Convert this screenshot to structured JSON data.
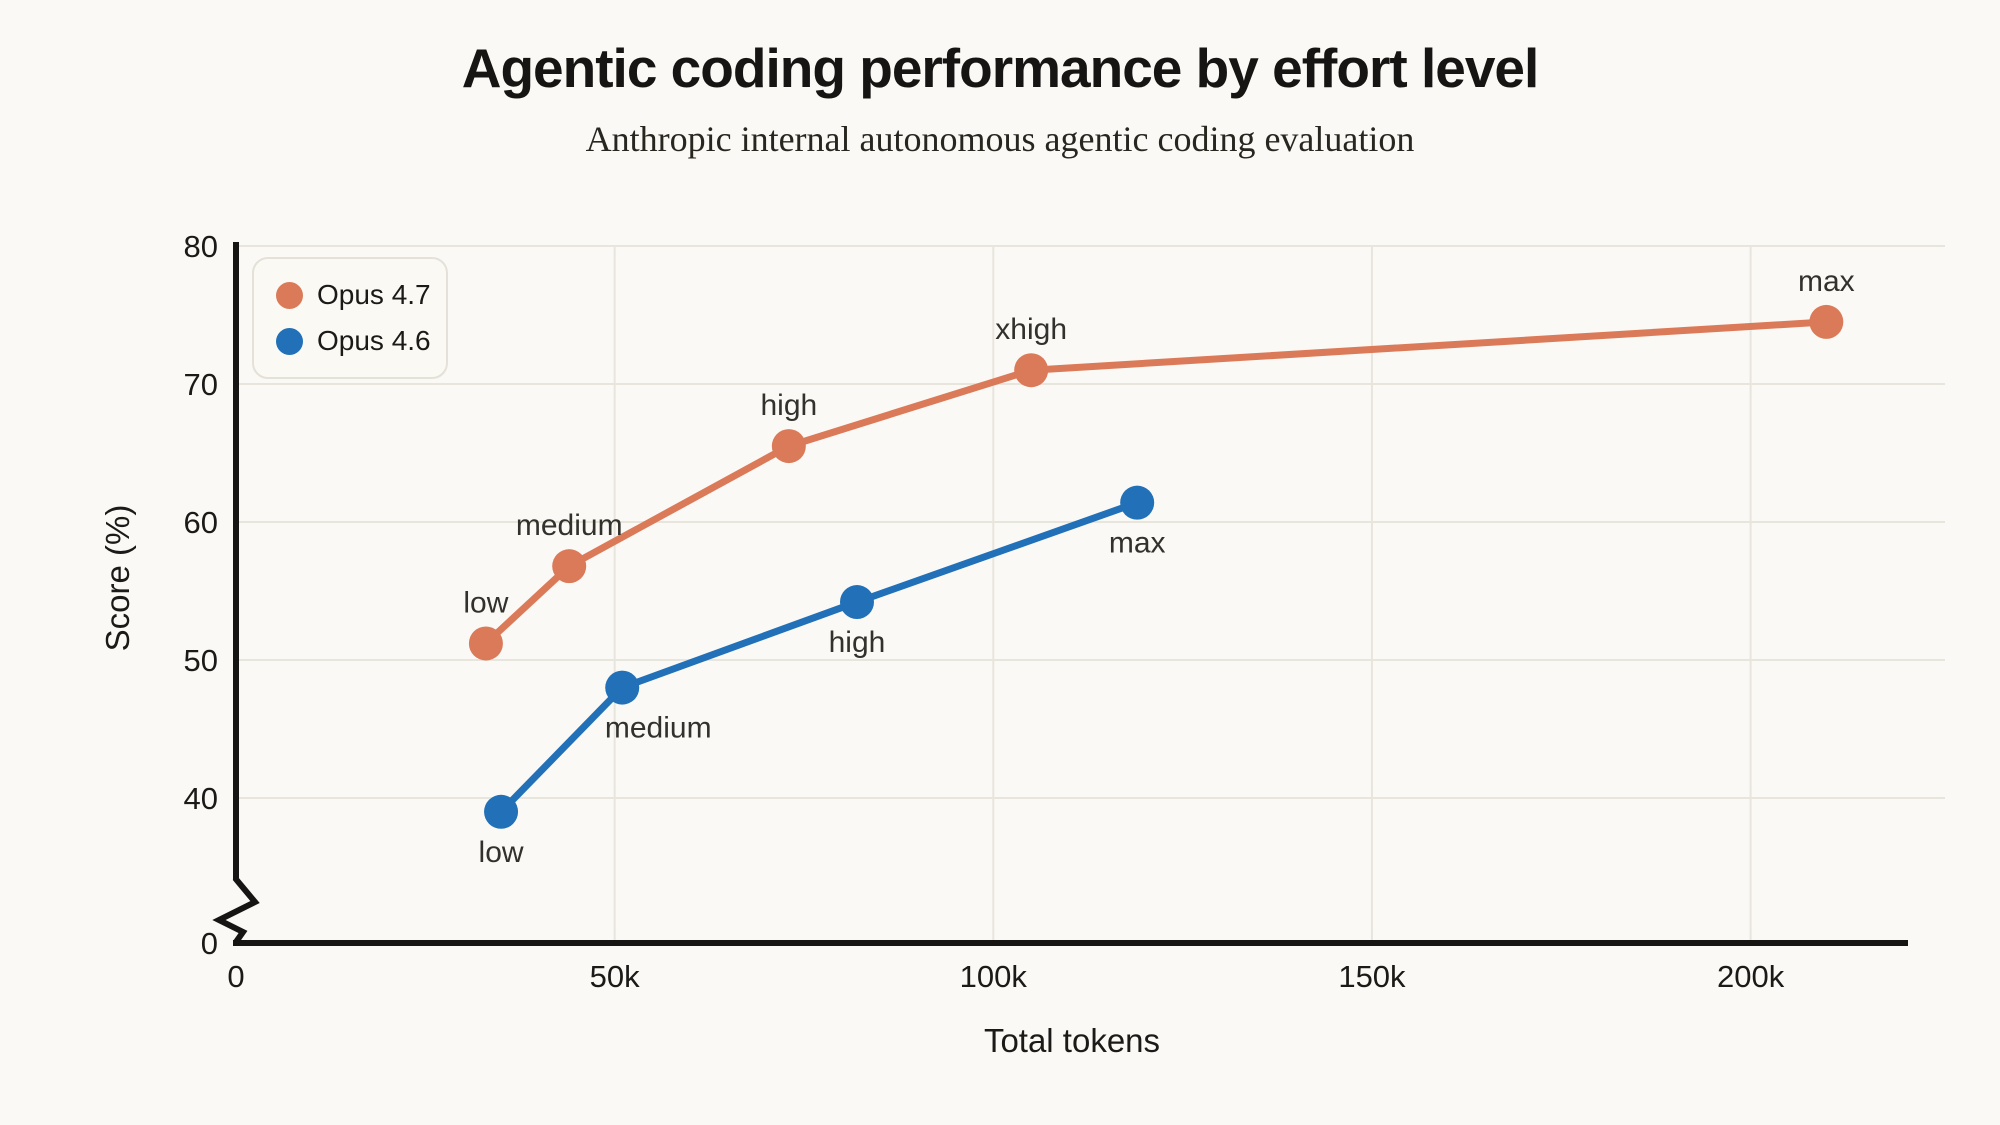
{
  "title": "Agentic coding performance by effort level",
  "subtitle": "Anthropic internal autonomous agentic coding evaluation",
  "colors": {
    "background": "#FAF9F5",
    "orange": "#DB7A58",
    "blue": "#2170B8",
    "grid": "#E8E5DD",
    "axis": "#161513",
    "tick_text": "#1B1A18",
    "point_label_text": "#33312C"
  },
  "legend": {
    "items": [
      {
        "label": "Opus 4.7",
        "color_key": "orange"
      },
      {
        "label": "Opus 4.6",
        "color_key": "blue"
      }
    ]
  },
  "chart_data": {
    "type": "line",
    "title": "Agentic coding performance by effort level",
    "subtitle": "Anthropic internal autonomous agentic coding evaluation",
    "xlabel": "Total tokens",
    "ylabel": "Score (%)",
    "x_unit": "tokens (thousands)",
    "xlim_k": [
      0,
      221
    ],
    "ylim_visible": [
      40,
      80
    ],
    "y_axis_break": true,
    "y_axis_break_label": "0",
    "grid": true,
    "legend_position": "top-left",
    "x_ticks": [
      {
        "value_k": 0,
        "label": "0"
      },
      {
        "value_k": 50,
        "label": "50k"
      },
      {
        "value_k": 100,
        "label": "100k"
      },
      {
        "value_k": 150,
        "label": "150k"
      },
      {
        "value_k": 200,
        "label": "200k"
      }
    ],
    "y_ticks": [
      {
        "value": 40,
        "label": "40"
      },
      {
        "value": 50,
        "label": "50"
      },
      {
        "value": 60,
        "label": "60"
      },
      {
        "value": 70,
        "label": "70"
      },
      {
        "value": 80,
        "label": "80"
      }
    ],
    "series": [
      {
        "name": "Opus 4.7",
        "color_key": "orange",
        "points": [
          {
            "x_tokens_k": 33,
            "y_score": 51.2,
            "label": "low",
            "label_pos": "above",
            "label_dx": 0
          },
          {
            "x_tokens_k": 44,
            "y_score": 56.8,
            "label": "medium",
            "label_pos": "above",
            "label_dx": 0
          },
          {
            "x_tokens_k": 73,
            "y_score": 65.5,
            "label": "high",
            "label_pos": "above",
            "label_dx": 0
          },
          {
            "x_tokens_k": 105,
            "y_score": 71.0,
            "label": "xhigh",
            "label_pos": "above",
            "label_dx": 0
          },
          {
            "x_tokens_k": 210,
            "y_score": 74.5,
            "label": "max",
            "label_pos": "above",
            "label_dx": 0
          }
        ]
      },
      {
        "name": "Opus 4.6",
        "color_key": "blue",
        "points": [
          {
            "x_tokens_k": 35,
            "y_score": 39.0,
            "label": "low",
            "label_pos": "below",
            "label_dx": 0
          },
          {
            "x_tokens_k": 51,
            "y_score": 48.0,
            "label": "medium",
            "label_pos": "below",
            "label_dx": 36
          },
          {
            "x_tokens_k": 82,
            "y_score": 54.2,
            "label": "high",
            "label_pos": "below",
            "label_dx": 0
          },
          {
            "x_tokens_k": 119,
            "y_score": 61.4,
            "label": "max",
            "label_pos": "below",
            "label_dx": 0
          }
        ]
      }
    ]
  }
}
